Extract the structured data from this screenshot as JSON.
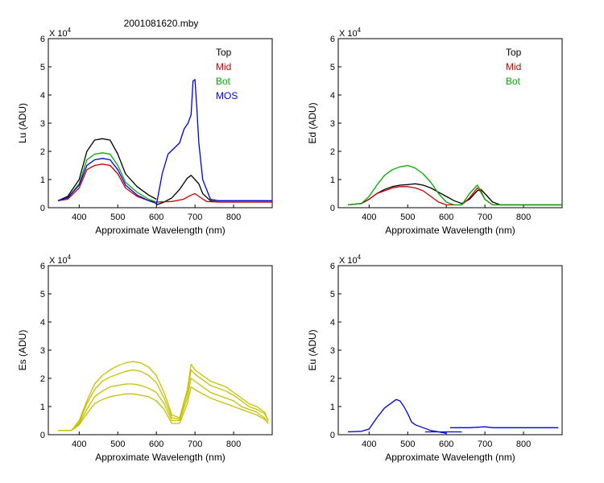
{
  "figure": {
    "title": "2001081620.mby"
  },
  "chart_data": [
    {
      "type": "line",
      "ylabel": "Lu (ADU)",
      "xlabel": "Approximate Wavelength (nm)",
      "multiplier": "X 10",
      "exponent": "4",
      "xlim": [
        320,
        900
      ],
      "ylim": [
        0,
        6
      ],
      "xticks": [
        "400",
        "500",
        "600",
        "700",
        "800"
      ],
      "yticks": [
        "0",
        "1",
        "2",
        "3",
        "4",
        "5",
        "6"
      ],
      "legend": [
        "Top",
        "Mid",
        "Bot",
        "MOS"
      ],
      "series": [
        {
          "name": "Top",
          "color": "#000000",
          "segments": [
            {
              "x": [
                345,
                370,
                400,
                420,
                440,
                460,
                480,
                500,
                520,
                550,
                580,
                600
              ],
              "y": [
                0.25,
                0.4,
                1.0,
                2.0,
                2.4,
                2.45,
                2.4,
                1.9,
                1.2,
                0.75,
                0.45,
                0.3
              ]
            },
            {
              "x": [
                600,
                620,
                640,
                660,
                680,
                690,
                700,
                710,
                720,
                740,
                760,
                800,
                900
              ],
              "y": [
                0.1,
                0.2,
                0.35,
                0.65,
                1.05,
                1.15,
                1.0,
                0.85,
                0.5,
                0.25,
                0.2,
                0.2,
                0.2
              ]
            }
          ]
        },
        {
          "name": "Mid",
          "color": "#cc0000",
          "segments": [
            {
              "x": [
                345,
                370,
                400,
                420,
                440,
                460,
                480,
                500,
                520,
                550,
                580,
                600
              ],
              "y": [
                0.25,
                0.3,
                0.7,
                1.35,
                1.5,
                1.55,
                1.5,
                1.2,
                0.7,
                0.4,
                0.25,
                0.2
              ]
            },
            {
              "x": [
                600,
                640,
                670,
                690,
                700,
                710,
                730,
                760,
                800,
                900
              ],
              "y": [
                0.2,
                0.22,
                0.3,
                0.45,
                0.5,
                0.4,
                0.22,
                0.2,
                0.2,
                0.2
              ]
            }
          ]
        },
        {
          "name": "Bot",
          "color": "#00aa00",
          "segments": [
            {
              "x": [
                345,
                370,
                400,
                420,
                440,
                460,
                480,
                500,
                520,
                550,
                580,
                600
              ],
              "y": [
                0.25,
                0.35,
                0.85,
                1.7,
                1.9,
                1.95,
                1.9,
                1.5,
                0.9,
                0.55,
                0.3,
                0.2
              ]
            }
          ]
        },
        {
          "name": "MOS",
          "color": "#0000dd",
          "segments": [
            {
              "x": [
                345,
                370,
                400,
                420,
                440,
                460,
                480,
                500,
                520,
                550,
                580,
                600
              ],
              "y": [
                0.25,
                0.35,
                0.8,
                1.5,
                1.7,
                1.75,
                1.7,
                1.35,
                0.8,
                0.45,
                0.25,
                0.15
              ]
            },
            {
              "x": [
                600,
                615,
                630,
                645,
                660,
                672,
                682,
                690,
                695,
                700,
                705,
                710,
                720,
                740,
                760,
                800,
                900
              ],
              "y": [
                0.1,
                1.2,
                1.9,
                2.1,
                2.3,
                2.8,
                3.0,
                3.3,
                4.5,
                4.55,
                3.5,
                2.3,
                1.0,
                0.3,
                0.25,
                0.25,
                0.25
              ]
            }
          ]
        }
      ]
    },
    {
      "type": "line",
      "ylabel": "Ed  (ADU)",
      "xlabel": "Approximate Wavelength (nm)",
      "multiplier": "X 10",
      "exponent": "4",
      "xlim": [
        320,
        900
      ],
      "ylim": [
        0,
        6
      ],
      "xticks": [
        "400",
        "500",
        "600",
        "700",
        "800"
      ],
      "yticks": [
        "0",
        "1",
        "2",
        "3",
        "4",
        "5",
        "6"
      ],
      "legend": [
        "Top",
        "Mid",
        "Bot"
      ],
      "series": [
        {
          "name": "Top",
          "color": "#000000",
          "segments": [
            {
              "x": [
                345,
                380,
                400,
                420,
                440,
                460,
                480,
                500,
                520,
                540,
                560,
                580,
                600,
                620,
                640,
                660,
                680,
                690,
                700,
                720,
                740,
                760,
                800,
                900
              ],
              "y": [
                0.1,
                0.15,
                0.3,
                0.5,
                0.65,
                0.75,
                0.8,
                0.82,
                0.85,
                0.8,
                0.7,
                0.55,
                0.4,
                0.25,
                0.15,
                0.3,
                0.6,
                0.65,
                0.5,
                0.2,
                0.1,
                0.1,
                0.1,
                0.1
              ]
            }
          ]
        },
        {
          "name": "Mid",
          "color": "#cc0000",
          "segments": [
            {
              "x": [
                345,
                380,
                400,
                420,
                440,
                460,
                480,
                500,
                520,
                540,
                560,
                580,
                600,
                620,
                640,
                660,
                680,
                690,
                700,
                720,
                740,
                760,
                800,
                900
              ],
              "y": [
                0.1,
                0.15,
                0.3,
                0.5,
                0.6,
                0.7,
                0.75,
                0.75,
                0.7,
                0.6,
                0.4,
                0.2,
                0.1,
                0.1,
                0.1,
                0.35,
                0.7,
                0.55,
                0.3,
                0.1,
                0.1,
                0.1,
                0.1,
                0.1
              ]
            }
          ]
        },
        {
          "name": "Bot",
          "color": "#00aa00",
          "segments": [
            {
              "x": [
                345,
                380,
                400,
                420,
                440,
                460,
                480,
                500,
                520,
                540,
                560,
                580,
                600,
                620,
                640,
                660,
                680,
                690,
                700,
                720,
                740,
                760,
                800,
                900
              ],
              "y": [
                0.1,
                0.15,
                0.4,
                0.8,
                1.15,
                1.35,
                1.45,
                1.5,
                1.4,
                1.2,
                0.9,
                0.5,
                0.2,
                0.1,
                0.1,
                0.5,
                0.8,
                0.6,
                0.3,
                0.1,
                0.1,
                0.1,
                0.1,
                0.1
              ]
            }
          ]
        }
      ]
    },
    {
      "type": "line",
      "ylabel": "Es  (ADU)",
      "xlabel": "Approximate Wavelength (nm)",
      "multiplier": "X 10",
      "exponent": "4",
      "xlim": [
        320,
        900
      ],
      "ylim": [
        0,
        6
      ],
      "xticks": [
        "400",
        "500",
        "600",
        "700",
        "800"
      ],
      "yticks": [
        "0",
        "1",
        "2",
        "3",
        "4",
        "5",
        "6"
      ],
      "legend": [],
      "series": [
        {
          "color": "#c8c000",
          "segments": [
            {
              "x": [
                345,
                380,
                400,
                420,
                440,
                460,
                480,
                500,
                520,
                540,
                560,
                580,
                600,
                620,
                640,
                660,
                680,
                690,
                700,
                720,
                740,
                760,
                780,
                800,
                820,
                840,
                860,
                880,
                890
              ],
              "y": [
                0.15,
                0.15,
                0.5,
                1.2,
                1.8,
                2.1,
                2.3,
                2.45,
                2.55,
                2.6,
                2.55,
                2.4,
                2.1,
                1.5,
                0.7,
                0.6,
                1.6,
                2.5,
                2.3,
                2.1,
                1.9,
                1.8,
                1.7,
                1.5,
                1.3,
                1.1,
                1.0,
                0.8,
                0.5
              ]
            }
          ]
        },
        {
          "color": "#c8c000",
          "segments": [
            {
              "x": [
                345,
                380,
                400,
                420,
                440,
                460,
                480,
                500,
                520,
                540,
                560,
                580,
                600,
                620,
                640,
                660,
                680,
                690,
                700,
                720,
                740,
                760,
                780,
                800,
                820,
                840,
                860,
                880,
                890
              ],
              "y": [
                0.15,
                0.15,
                0.45,
                1.1,
                1.6,
                1.9,
                2.05,
                2.15,
                2.25,
                2.3,
                2.25,
                2.1,
                1.85,
                1.3,
                0.6,
                0.55,
                1.5,
                2.3,
                2.15,
                1.95,
                1.75,
                1.65,
                1.55,
                1.4,
                1.2,
                1.0,
                0.9,
                0.75,
                0.5
              ]
            }
          ]
        },
        {
          "color": "#c8c000",
          "segments": [
            {
              "x": [
                345,
                380,
                400,
                420,
                440,
                460,
                480,
                500,
                520,
                540,
                560,
                580,
                600,
                620,
                640,
                660,
                680,
                690,
                700,
                720,
                740,
                760,
                780,
                800,
                820,
                840,
                860,
                880,
                890
              ],
              "y": [
                0.15,
                0.15,
                0.4,
                0.9,
                1.35,
                1.55,
                1.7,
                1.75,
                1.8,
                1.8,
                1.75,
                1.65,
                1.5,
                1.1,
                0.5,
                0.5,
                1.3,
                2.0,
                1.9,
                1.7,
                1.5,
                1.4,
                1.3,
                1.2,
                1.0,
                0.9,
                0.8,
                0.6,
                0.4
              ]
            }
          ]
        },
        {
          "color": "#c8c000",
          "segments": [
            {
              "x": [
                345,
                380,
                400,
                420,
                440,
                460,
                480,
                500,
                520,
                540,
                560,
                580,
                600,
                620,
                640,
                660,
                680,
                690,
                700,
                720,
                740,
                760,
                780,
                800,
                820,
                840,
                860,
                880,
                890
              ],
              "y": [
                0.15,
                0.15,
                0.35,
                0.75,
                1.1,
                1.25,
                1.35,
                1.4,
                1.45,
                1.45,
                1.4,
                1.35,
                1.2,
                0.9,
                0.4,
                0.4,
                1.1,
                1.7,
                1.6,
                1.45,
                1.3,
                1.2,
                1.1,
                1.0,
                0.9,
                0.8,
                0.7,
                0.55,
                0.4
              ]
            }
          ]
        }
      ]
    },
    {
      "type": "line",
      "ylabel": "Eu  (ADU)",
      "xlabel": "Approximate Wavelength (nm)",
      "multiplier": "X 10",
      "exponent": "4",
      "xlim": [
        320,
        900
      ],
      "ylim": [
        0,
        6
      ],
      "xticks": [
        "400",
        "500",
        "600",
        "700",
        "800"
      ],
      "yticks": [
        "0",
        "1",
        "2",
        "3",
        "4",
        "5",
        "6"
      ],
      "legend": [],
      "series": [
        {
          "color": "#0000dd",
          "segments": [
            {
              "x": [
                345,
                380,
                400,
                420,
                440,
                460,
                470,
                480,
                490,
                500,
                510,
                520,
                540,
                560,
                580,
                600
              ],
              "y": [
                0.1,
                0.12,
                0.2,
                0.6,
                0.95,
                1.15,
                1.25,
                1.2,
                1.0,
                0.75,
                0.45,
                0.35,
                0.25,
                0.15,
                0.1,
                0.05
              ]
            },
            {
              "x": [
                545,
                640
              ],
              "y": [
                0.1,
                0.1
              ]
            },
            {
              "x": [
                610,
                660,
                700,
                720,
                760,
                800,
                850,
                890
              ],
              "y": [
                0.25,
                0.25,
                0.28,
                0.25,
                0.25,
                0.25,
                0.25,
                0.25
              ]
            }
          ]
        }
      ]
    }
  ]
}
